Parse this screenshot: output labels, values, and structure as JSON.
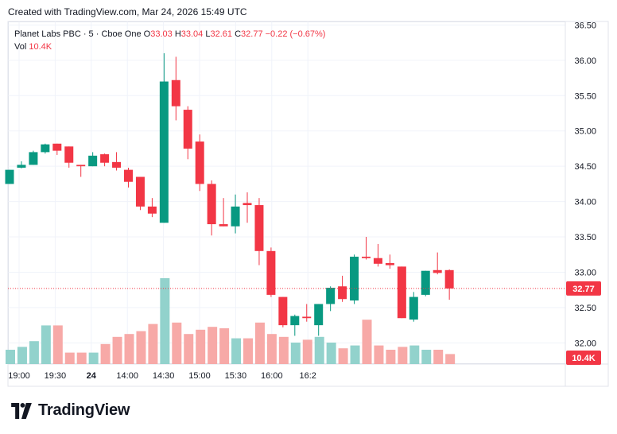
{
  "header": {
    "created_with": "Created with TradingView.com, Mar 24, 2026 15:49 UTC"
  },
  "legend": {
    "symbol": "Planet Labs PBC · 5 · Cboe One",
    "o_label": "O",
    "o_value": "33.03",
    "h_label": "H",
    "h_value": "33.04",
    "l_label": "L",
    "l_value": "32.61",
    "c_label": "C",
    "c_value": "32.77",
    "change": "−0.22 (−0.67%)",
    "vol_label": "Vol",
    "vol_value": "10.4K"
  },
  "brand": {
    "name": "TradingView"
  },
  "colors": {
    "up": "#089981",
    "down": "#f23645",
    "vol_up": "#92d2cc",
    "vol_down": "#f7a9a7"
  },
  "chart_data": {
    "type": "candlestick",
    "interval": "5",
    "ylim": [
      31.7,
      36.55
    ],
    "y_ticks": [
      "32.00",
      "32.50",
      "33.00",
      "33.50",
      "34.00",
      "34.50",
      "35.00",
      "35.50",
      "36.00",
      "36.50"
    ],
    "x_ticks": [
      "19:00",
      "19:30",
      "24",
      "14:00",
      "14:30",
      "15:00",
      "15:30",
      "16:00",
      "16:2"
    ],
    "last_price_label": "32.77",
    "last_price": 32.77,
    "volume_label": "10.4K",
    "candles": [
      {
        "o": 34.25,
        "h": 34.45,
        "l": 34.25,
        "c": 34.45,
        "v": 1
      },
      {
        "o": 34.48,
        "h": 34.57,
        "l": 34.47,
        "c": 34.52,
        "v": 1.2
      },
      {
        "o": 34.52,
        "h": 34.72,
        "l": 34.52,
        "c": 34.7,
        "v": 1.6
      },
      {
        "o": 34.7,
        "h": 34.82,
        "l": 34.68,
        "c": 34.81,
        "v": 2.7
      },
      {
        "o": 34.82,
        "h": 34.82,
        "l": 34.66,
        "c": 34.72,
        "v": 2.7
      },
      {
        "o": 34.78,
        "h": 34.78,
        "l": 34.48,
        "c": 34.55,
        "v": 0.8
      },
      {
        "o": 34.52,
        "h": 34.52,
        "l": 34.35,
        "c": 34.5,
        "v": 0.8
      },
      {
        "o": 34.5,
        "h": 34.7,
        "l": 34.5,
        "c": 34.65,
        "v": 0.8
      },
      {
        "o": 34.67,
        "h": 34.68,
        "l": 34.5,
        "c": 34.55,
        "v": 1.4
      },
      {
        "o": 34.56,
        "h": 34.7,
        "l": 34.44,
        "c": 34.48,
        "v": 1.9
      },
      {
        "o": 34.45,
        "h": 34.48,
        "l": 34.2,
        "c": 34.28,
        "v": 2.1
      },
      {
        "o": 34.35,
        "h": 34.35,
        "l": 33.88,
        "c": 33.93,
        "v": 2.3
      },
      {
        "o": 33.93,
        "h": 34.05,
        "l": 33.78,
        "c": 33.83,
        "v": 2.8
      },
      {
        "o": 33.7,
        "h": 36.1,
        "l": 33.7,
        "c": 35.7,
        "v": 6.0
      },
      {
        "o": 35.72,
        "h": 36.05,
        "l": 35.15,
        "c": 35.35,
        "v": 2.9
      },
      {
        "o": 35.3,
        "h": 35.35,
        "l": 34.6,
        "c": 34.75,
        "v": 2.1
      },
      {
        "o": 34.85,
        "h": 34.95,
        "l": 34.15,
        "c": 34.25,
        "v": 2.4
      },
      {
        "o": 34.25,
        "h": 34.3,
        "l": 33.52,
        "c": 33.68,
        "v": 2.6
      },
      {
        "o": 33.68,
        "h": 34.05,
        "l": 33.65,
        "c": 33.65,
        "v": 2.5
      },
      {
        "o": 33.65,
        "h": 34.1,
        "l": 33.55,
        "c": 33.93,
        "v": 1.8
      },
      {
        "o": 33.98,
        "h": 34.13,
        "l": 33.7,
        "c": 33.95,
        "v": 1.8
      },
      {
        "o": 33.95,
        "h": 34.05,
        "l": 33.1,
        "c": 33.3,
        "v": 2.9
      },
      {
        "o": 33.3,
        "h": 33.35,
        "l": 32.65,
        "c": 32.68,
        "v": 2.1
      },
      {
        "o": 32.65,
        "h": 32.65,
        "l": 32.22,
        "c": 32.25,
        "v": 1.9
      },
      {
        "o": 32.25,
        "h": 32.4,
        "l": 32.1,
        "c": 32.38,
        "v": 1.5
      },
      {
        "o": 32.37,
        "h": 32.55,
        "l": 32.3,
        "c": 32.35,
        "v": 1.7
      },
      {
        "o": 32.25,
        "h": 32.55,
        "l": 32.1,
        "c": 32.55,
        "v": 1.9
      },
      {
        "o": 32.55,
        "h": 32.8,
        "l": 32.45,
        "c": 32.78,
        "v": 1.5
      },
      {
        "o": 32.8,
        "h": 32.95,
        "l": 32.58,
        "c": 32.62,
        "v": 1.1
      },
      {
        "o": 32.6,
        "h": 33.25,
        "l": 32.55,
        "c": 33.22,
        "v": 1.3
      },
      {
        "o": 33.22,
        "h": 33.5,
        "l": 33.18,
        "c": 33.2,
        "v": 3.1
      },
      {
        "o": 33.2,
        "h": 33.4,
        "l": 33.08,
        "c": 33.12,
        "v": 1.3
      },
      {
        "o": 33.13,
        "h": 33.25,
        "l": 33.05,
        "c": 33.1,
        "v": 1.0
      },
      {
        "o": 33.08,
        "h": 33.08,
        "l": 32.35,
        "c": 32.35,
        "v": 1.2
      },
      {
        "o": 32.33,
        "h": 32.72,
        "l": 32.3,
        "c": 32.65,
        "v": 1.3
      },
      {
        "o": 32.68,
        "h": 33.02,
        "l": 32.66,
        "c": 33.02,
        "v": 1.0
      },
      {
        "o": 33.03,
        "h": 33.28,
        "l": 32.97,
        "c": 32.99,
        "v": 1.0
      },
      {
        "o": 33.03,
        "h": 33.04,
        "l": 32.61,
        "c": 32.77,
        "v": 0.7
      }
    ]
  }
}
